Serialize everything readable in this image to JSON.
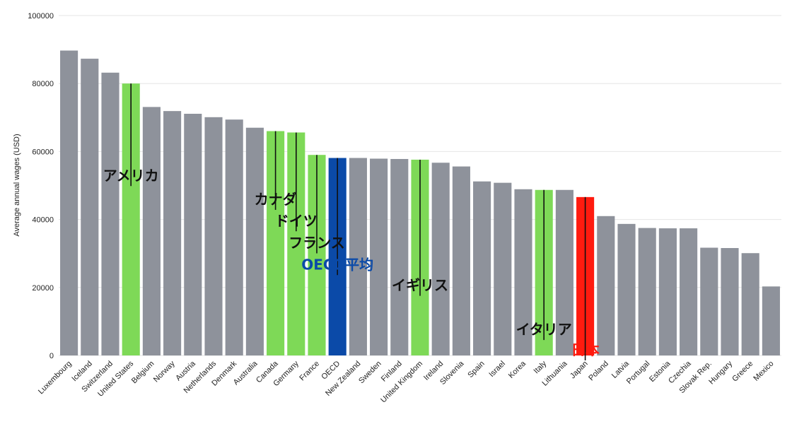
{
  "chart_data": {
    "type": "bar",
    "ylabel": "Average annual wages (USD)",
    "ylim": [
      0,
      100000
    ],
    "yticks": [
      0,
      20000,
      40000,
      60000,
      80000,
      100000
    ],
    "grid": true,
    "categories": [
      "Luxembourg",
      "Iceland",
      "Switzerland",
      "United States",
      "Belgium",
      "Norway",
      "Austria",
      "Netherlands",
      "Denmark",
      "Australia",
      "Canada",
      "Germany",
      "France",
      "OECD",
      "New Zealand",
      "Sweden",
      "Finland",
      "United Kingdom",
      "Ireland",
      "Slovenia",
      "Spain",
      "Israel",
      "Korea",
      "Italy",
      "Lithuania",
      "Japan",
      "Poland",
      "Latvia",
      "Portugal",
      "Estonia",
      "Czechia",
      "Slovak Rep.",
      "Hungary",
      "Greece",
      "Mexico"
    ],
    "values": [
      89700,
      87300,
      83200,
      80000,
      73100,
      71900,
      71100,
      70100,
      69400,
      67000,
      66000,
      65600,
      59000,
      58100,
      58100,
      57900,
      57800,
      57600,
      56700,
      55600,
      51200,
      50800,
      48900,
      48700,
      48700,
      46600,
      41000,
      38700,
      37500,
      37400,
      37400,
      31700,
      31600,
      30100,
      20300
    ],
    "colors": {
      "default": "#8e929b",
      "highlight": "#7ed957",
      "oecd": "#0b4aa8",
      "japan": "#ff1b0f",
      "callout_text": "#111111",
      "oecd_text": "#0b4aa8",
      "japan_text": "#ff1b0f"
    },
    "highlighted": [
      "United States",
      "Canada",
      "Germany",
      "France",
      "United Kingdom",
      "Italy"
    ],
    "annotations": [
      {
        "category": "United States",
        "text": "アメリカ",
        "label_y": 51500,
        "color_key": "callout_text"
      },
      {
        "category": "Canada",
        "text": "カナダ",
        "label_y": 44500,
        "color_key": "callout_text"
      },
      {
        "category": "Germany",
        "text": "ドイツ",
        "label_y": 38200,
        "color_key": "callout_text"
      },
      {
        "category": "France",
        "text": "フランス",
        "label_y": 31700,
        "color_key": "callout_text"
      },
      {
        "category": "OECD",
        "text": "OECD平均",
        "label_y": 25300,
        "color_key": "oecd_text"
      },
      {
        "category": "United Kingdom",
        "text": "イギリス",
        "label_y": 19200,
        "color_key": "callout_text"
      },
      {
        "category": "Italy",
        "text": "イタリア",
        "label_y": 6200,
        "color_key": "callout_text"
      },
      {
        "category": "Japan",
        "text": "日本",
        "label_y": 200,
        "color_key": "japan_text"
      }
    ]
  }
}
